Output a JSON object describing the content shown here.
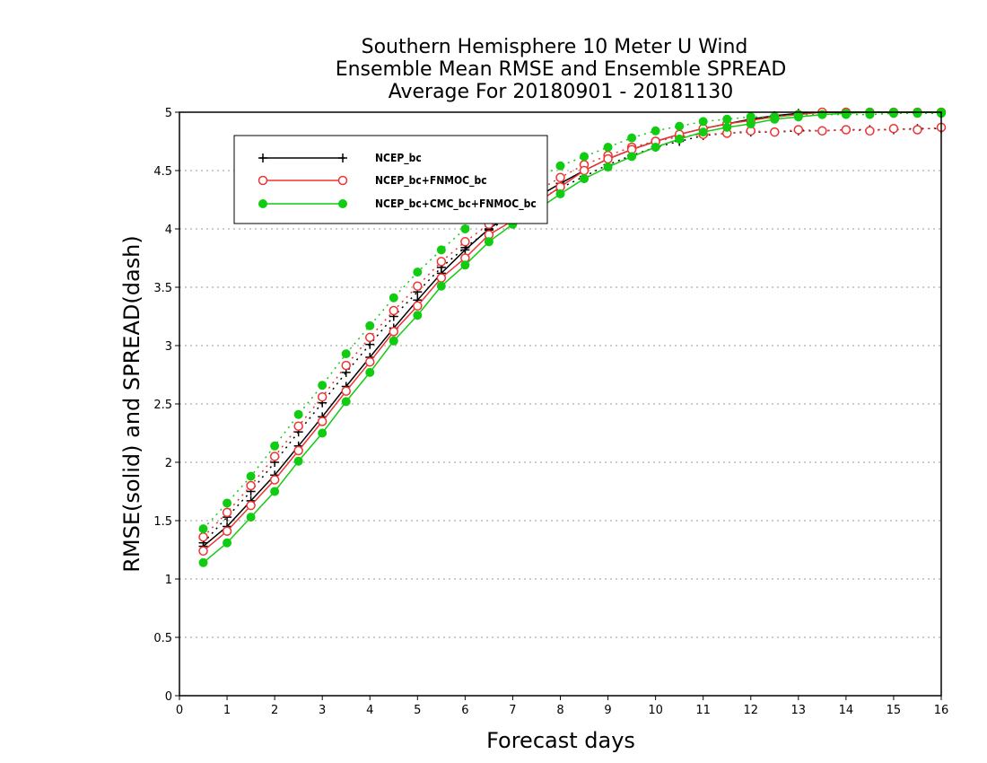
{
  "chart_data": {
    "type": "line",
    "title_lines": [
      "Southern Hemisphere 10 Meter U Wind",
      "Ensemble Mean RMSE and Ensemble SPREAD",
      "Average For 20180901 - 20181130"
    ],
    "xlabel": "Forecast days",
    "ylabel": "RMSE(solid) and SPREAD(dash)",
    "xlim": [
      0,
      16
    ],
    "ylim": [
      0,
      5
    ],
    "x_ticks": [
      "0",
      "1",
      "2",
      "3",
      "4",
      "5",
      "6",
      "7",
      "8",
      "9",
      "10",
      "11",
      "12",
      "13",
      "14",
      "15",
      "16"
    ],
    "y_ticks": [
      "0",
      "0.5",
      "1",
      "1.5",
      "2",
      "2.5",
      "3",
      "3.5",
      "4",
      "4.5",
      "5"
    ],
    "grid": "horizontal dotted",
    "legend_position": "top-left",
    "x": [
      0.5,
      1,
      1.5,
      2,
      2.5,
      3,
      3.5,
      4,
      4.5,
      5,
      5.5,
      6,
      6.5,
      7,
      7.5,
      8,
      8.5,
      9,
      9.5,
      10,
      10.5,
      11,
      11.5,
      12,
      12.5,
      13,
      13.5,
      14,
      14.5,
      15,
      15.5,
      16
    ],
    "series": [
      {
        "name": "NCEP_bc",
        "color": "#000000",
        "marker": "plus",
        "rmse": [
          1.28,
          1.45,
          1.67,
          1.89,
          2.14,
          2.39,
          2.65,
          2.9,
          3.15,
          3.39,
          3.62,
          3.82,
          4.0,
          4.14,
          4.27,
          4.39,
          4.5,
          4.6,
          4.68,
          4.75,
          4.81,
          4.86,
          4.9,
          4.94,
          4.97,
          4.99,
          5.0,
          5.0,
          5.0,
          5.0,
          5.0,
          5.0
        ],
        "spread": [
          1.31,
          1.53,
          1.75,
          2.0,
          2.26,
          2.51,
          2.77,
          3.01,
          3.25,
          3.46,
          3.67,
          3.84,
          3.99,
          4.12,
          4.24,
          4.35,
          4.45,
          4.55,
          4.63,
          4.7,
          4.75,
          4.8,
          4.82,
          4.83,
          4.83,
          4.84,
          4.84,
          4.85,
          4.85,
          4.85,
          4.86,
          4.86
        ]
      },
      {
        "name": "NCEP_bc+FNMOC_bc",
        "color": "#ee3333",
        "marker": "open-circle",
        "rmse": [
          1.24,
          1.41,
          1.63,
          1.85,
          2.1,
          2.35,
          2.61,
          2.86,
          3.12,
          3.34,
          3.58,
          3.75,
          3.95,
          4.07,
          4.22,
          4.36,
          4.5,
          4.6,
          4.68,
          4.75,
          4.81,
          4.86,
          4.9,
          4.93,
          4.96,
          4.98,
          5.0,
          5.0,
          5.0,
          5.0,
          5.0,
          5.0
        ],
        "spread": [
          1.36,
          1.57,
          1.8,
          2.05,
          2.31,
          2.56,
          2.83,
          3.07,
          3.3,
          3.51,
          3.72,
          3.89,
          4.04,
          4.18,
          4.32,
          4.44,
          4.55,
          4.63,
          4.7,
          4.75,
          4.79,
          4.81,
          4.82,
          4.84,
          4.83,
          4.85,
          4.84,
          4.85,
          4.84,
          4.86,
          4.85,
          4.87
        ]
      },
      {
        "name": "NCEP_bc+CMC_bc+FNMOC_bc",
        "color": "#11cc11",
        "marker": "filled-circle",
        "rmse": [
          1.14,
          1.31,
          1.53,
          1.75,
          2.01,
          2.25,
          2.52,
          2.77,
          3.04,
          3.26,
          3.51,
          3.69,
          3.89,
          4.04,
          4.16,
          4.3,
          4.43,
          4.53,
          4.62,
          4.7,
          4.77,
          4.83,
          4.87,
          4.9,
          4.94,
          4.96,
          4.98,
          4.99,
          5.0,
          5.0,
          5.0,
          5.0
        ],
        "spread": [
          1.43,
          1.65,
          1.88,
          2.14,
          2.41,
          2.66,
          2.93,
          3.17,
          3.41,
          3.63,
          3.82,
          4.0,
          4.17,
          4.31,
          4.43,
          4.54,
          4.62,
          4.7,
          4.78,
          4.84,
          4.88,
          4.92,
          4.94,
          4.96,
          4.96,
          4.98,
          4.98,
          4.98,
          4.98,
          4.99,
          4.99,
          4.99
        ]
      }
    ]
  }
}
